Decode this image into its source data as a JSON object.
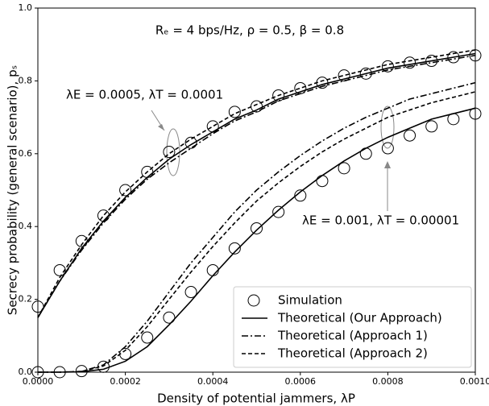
{
  "chart_data": {
    "type": "line",
    "annotations": [
      "Rₑ = 4 bps/Hz, ρ = 0.5, β = 0.8",
      "λE = 0.0005, λT = 0.0001",
      "λE = 0.001, λT = 0.00001"
    ],
    "xlabel": "Density of potential jammers, λP",
    "ylabel": "Secrecy probability (general scenario), pₛ",
    "x": [
      0,
      5e-05,
      0.0001,
      0.00015,
      0.0002,
      0.00025,
      0.0003,
      0.00035,
      0.0004,
      0.00045,
      0.0005,
      0.00055,
      0.0006,
      0.00065,
      0.0007,
      0.00075,
      0.0008,
      0.00085,
      0.0009,
      0.00095,
      0.001
    ],
    "xlim": [
      0,
      0.001
    ],
    "xticks": [
      {
        "value": 0,
        "label": "0.0000"
      },
      {
        "value": 0.0002,
        "label": "0.0002"
      },
      {
        "value": 0.0004,
        "label": "0.0004"
      },
      {
        "value": 0.0006,
        "label": "0.0006"
      },
      {
        "value": 0.0008,
        "label": "0.0008"
      },
      {
        "value": 0.001,
        "label": "0.0010"
      }
    ],
    "ylim": [
      0,
      1
    ],
    "yticks": [
      {
        "value": 0,
        "label": "0.0"
      },
      0.2,
      0.4,
      0.6,
      0.8,
      {
        "value": 1,
        "label": "1.0"
      }
    ],
    "legend": "lower right",
    "series": [
      {
        "name": "Simulation",
        "style": "marker",
        "color": "#000000",
        "values": [
          0.18,
          0.28,
          0.36,
          0.43,
          0.5,
          0.55,
          0.605,
          0.63,
          0.675,
          0.715,
          0.73,
          0.76,
          0.78,
          0.795,
          0.815,
          0.82,
          0.84,
          0.85,
          0.855,
          0.865,
          0.87
        ]
      },
      {
        "name": "Theoretical (Our Approach)",
        "style": "solid",
        "color": "#000000",
        "values": [
          0.15,
          0.25,
          0.34,
          0.415,
          0.48,
          0.535,
          0.585,
          0.625,
          0.66,
          0.695,
          0.72,
          0.75,
          0.77,
          0.79,
          0.805,
          0.82,
          0.835,
          0.845,
          0.855,
          0.865,
          0.875
        ]
      },
      {
        "name": "Theoretical (Approach 1)",
        "style": "dashdot",
        "color": "#000000",
        "values": [
          0.15,
          0.25,
          0.335,
          0.41,
          0.475,
          0.53,
          0.575,
          0.615,
          0.655,
          0.69,
          0.715,
          0.745,
          0.765,
          0.785,
          0.8,
          0.815,
          0.83,
          0.84,
          0.85,
          0.86,
          0.87
        ]
      },
      {
        "name": "Theoretical (Approach 2)",
        "style": "dashed",
        "color": "#000000",
        "values": [
          0.15,
          0.26,
          0.35,
          0.43,
          0.495,
          0.55,
          0.6,
          0.64,
          0.675,
          0.71,
          0.735,
          0.76,
          0.78,
          0.8,
          0.815,
          0.83,
          0.845,
          0.855,
          0.865,
          0.875,
          0.885
        ]
      },
      {
        "name": "Simulation",
        "style": "marker",
        "color": "#000000",
        "values": [
          0,
          0,
          0.003,
          0.015,
          0.05,
          0.095,
          0.15,
          0.22,
          0.28,
          0.34,
          0.395,
          0.44,
          0.485,
          0.525,
          0.56,
          0.6,
          0.615,
          0.65,
          0.675,
          0.695,
          0.71
        ]
      },
      {
        "name": "Theoretical (Our Approach)",
        "style": "solid",
        "color": "#000000",
        "values": [
          0,
          0,
          0.001,
          0.008,
          0.03,
          0.07,
          0.13,
          0.195,
          0.265,
          0.33,
          0.39,
          0.445,
          0.495,
          0.54,
          0.58,
          0.615,
          0.645,
          0.67,
          0.695,
          0.71,
          0.725
        ]
      },
      {
        "name": "Theoretical (Approach 1)",
        "style": "dashdot",
        "color": "#000000",
        "values": [
          0,
          0,
          0.002,
          0.02,
          0.07,
          0.14,
          0.22,
          0.3,
          0.37,
          0.44,
          0.5,
          0.55,
          0.595,
          0.635,
          0.67,
          0.7,
          0.725,
          0.75,
          0.765,
          0.78,
          0.795
        ]
      },
      {
        "name": "Theoretical (Approach 2)",
        "style": "dashed",
        "color": "#000000",
        "values": [
          0,
          0,
          0.002,
          0.017,
          0.06,
          0.125,
          0.2,
          0.275,
          0.345,
          0.41,
          0.47,
          0.52,
          0.565,
          0.605,
          0.64,
          0.67,
          0.7,
          0.72,
          0.74,
          0.755,
          0.77
        ]
      }
    ]
  }
}
